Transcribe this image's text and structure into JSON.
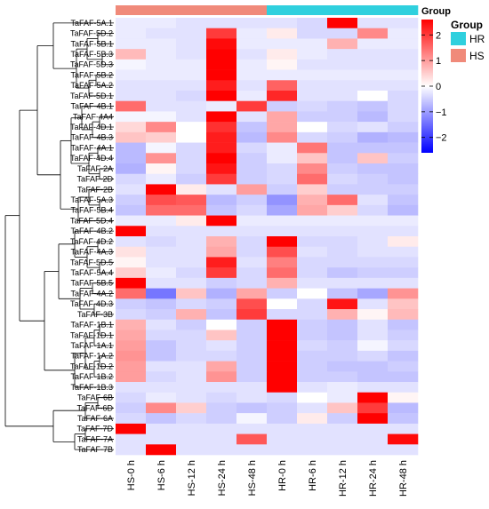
{
  "chart_data": {
    "type": "heatmap",
    "title": "",
    "xlabel": "",
    "ylabel": "",
    "columns": [
      "HS-0 h",
      "HS-6 h",
      "HS-12 h",
      "HS-24 h",
      "HS-48 h",
      "HR-0 h",
      "HR-6 h",
      "HR-12 h",
      "HR-24 h",
      "HR-48 h"
    ],
    "column_groups": [
      "HS",
      "HS",
      "HS",
      "HS",
      "HS",
      "HR",
      "HR",
      "HR",
      "HR",
      "HR"
    ],
    "rows": [
      "TaFAF-5A.1",
      "TaFAF-5D.2",
      "TaFAF-5B.1",
      "TaFAF-5B.3",
      "TaFAF-5D.3",
      "TaFAF-5B.2",
      "TaFAF-5A.2",
      "TaFAF-5D.1",
      "TaFAF-4B.1",
      "TaFAF-4A4",
      "TaFAF-4D.1",
      "TaFAF-4B.3",
      "TaFAF-4A.1",
      "TaFAF-4D.4",
      "TaFAF-2A",
      "TaFAF-2D",
      "TaFAF-2B",
      "TaFAF-5A.3",
      "TaFAF-5B.4",
      "TaFAF-5D.4",
      "TaFAF-4B.2",
      "TaFAF-4D.2",
      "TaFAF-4A.3",
      "TaFAF-5D.5",
      "TaFAF-5A.4",
      "TaFAF-5B.5",
      "TaFAF-4A.2",
      "TaFAF-4D.3",
      "TaFAF-3B",
      "TaFAF-1B.1",
      "TaFAF-1D.1",
      "TaFAF-1A.1",
      "TaFAF-1A.2",
      "TaFAF-1D.2",
      "TaFAF-1B.2",
      "TaFAF-1B.3",
      "TaFAF-6B",
      "TaFAF-6D",
      "TaFAF-6A",
      "TaFAF-7D",
      "TaFAF-7A",
      "TaFAF-7B"
    ],
    "values": [
      [
        -0.2,
        -0.2,
        -0.3,
        -0.3,
        -0.3,
        -0.3,
        -0.4,
        2.9,
        -0.3,
        -0.3
      ],
      [
        -0.2,
        -0.3,
        -0.3,
        2.0,
        -0.2,
        0.2,
        -0.4,
        -0.4,
        1.2,
        -0.2
      ],
      [
        -0.2,
        -0.2,
        -0.3,
        2.5,
        -0.2,
        -0.2,
        -0.2,
        0.8,
        -0.2,
        -0.2
      ],
      [
        0.7,
        -0.2,
        -0.3,
        2.6,
        -0.3,
        0.2,
        -0.2,
        -0.3,
        -0.3,
        -0.3
      ],
      [
        -0.1,
        -0.2,
        -0.2,
        2.8,
        -0.2,
        0.1,
        -0.3,
        -0.3,
        -0.3,
        -0.3
      ],
      [
        -0.2,
        -0.2,
        -0.2,
        2.6,
        -0.2,
        -0.2,
        -0.2,
        -0.2,
        -0.2,
        -0.2
      ],
      [
        -0.3,
        -0.3,
        -0.3,
        2.3,
        -0.3,
        1.6,
        -0.3,
        -0.3,
        -0.3,
        -0.3
      ],
      [
        -0.3,
        -0.3,
        -0.4,
        2.9,
        -0.2,
        2.2,
        -0.3,
        -0.3,
        0.0,
        -0.4
      ],
      [
        1.5,
        -0.3,
        -0.3,
        -0.2,
        2.0,
        -0.5,
        -0.4,
        -0.5,
        -0.6,
        -0.4
      ],
      [
        -0.1,
        -0.1,
        -0.3,
        2.7,
        -0.3,
        0.9,
        -0.5,
        -0.5,
        -0.7,
        -0.4
      ],
      [
        0.4,
        1.2,
        0.0,
        2.1,
        -0.6,
        0.9,
        0.0,
        -0.4,
        -0.3,
        -0.5
      ],
      [
        0.6,
        0.5,
        0.0,
        2.3,
        -0.7,
        1.2,
        -0.4,
        -0.5,
        -0.8,
        -0.7
      ],
      [
        -0.7,
        -0.1,
        -0.4,
        2.3,
        -0.4,
        -0.2,
        1.4,
        -0.6,
        -0.6,
        -0.6
      ],
      [
        -0.7,
        1.1,
        -0.4,
        2.6,
        -0.5,
        -0.2,
        0.6,
        -0.6,
        0.6,
        -0.5
      ],
      [
        -0.8,
        0.1,
        -0.4,
        2.4,
        -0.5,
        -0.4,
        1.2,
        -0.5,
        -0.6,
        -0.6
      ],
      [
        -0.4,
        -0.2,
        -0.5,
        2.0,
        -0.5,
        -0.4,
        1.5,
        -0.4,
        -0.5,
        -0.6
      ],
      [
        -0.3,
        2.7,
        0.2,
        -0.3,
        1.0,
        -0.5,
        0.5,
        -0.5,
        -0.5,
        -0.5
      ],
      [
        -0.5,
        1.8,
        1.7,
        -0.7,
        -0.5,
        -1.1,
        0.8,
        1.5,
        -0.3,
        -0.6
      ],
      [
        -0.6,
        1.5,
        1.5,
        -0.6,
        -0.4,
        -0.9,
        0.9,
        0.5,
        -0.4,
        -0.7
      ],
      [
        -0.2,
        -0.2,
        0.2,
        2.9,
        -0.2,
        -0.2,
        -0.2,
        -0.2,
        -0.2,
        -0.2
      ],
      [
        2.9,
        -0.3,
        -0.3,
        -0.3,
        -0.3,
        -0.3,
        -0.3,
        -0.3,
        -0.3,
        -0.3
      ],
      [
        -0.3,
        -0.4,
        -0.3,
        0.8,
        -0.4,
        2.9,
        -0.4,
        -0.4,
        -0.3,
        0.2
      ],
      [
        0.3,
        -0.3,
        -0.3,
        0.9,
        -0.4,
        1.8,
        -0.3,
        -0.4,
        -0.3,
        -0.3
      ],
      [
        0.1,
        -0.3,
        -0.3,
        2.3,
        -0.3,
        1.3,
        -0.4,
        -0.4,
        -0.4,
        -0.4
      ],
      [
        0.5,
        -0.2,
        -0.4,
        2.0,
        -0.4,
        1.5,
        -0.4,
        -0.6,
        -0.5,
        -0.5
      ],
      [
        2.6,
        -0.3,
        -0.3,
        -0.5,
        -0.4,
        0.8,
        -0.3,
        -0.3,
        -0.3,
        -0.3
      ],
      [
        1.5,
        -1.4,
        0.6,
        -0.8,
        0.9,
        -0.5,
        0.0,
        -0.6,
        -0.9,
        1.1
      ],
      [
        -0.5,
        -0.6,
        -0.4,
        -0.5,
        1.8,
        0.0,
        -0.4,
        2.4,
        -0.3,
        0.6
      ],
      [
        -0.4,
        -0.5,
        0.8,
        -0.6,
        2.0,
        -0.4,
        -0.4,
        0.8,
        0.1,
        0.7
      ],
      [
        0.8,
        -0.3,
        -0.5,
        0.0,
        -0.5,
        2.8,
        -0.5,
        -0.6,
        -0.3,
        -0.6
      ],
      [
        0.9,
        -0.4,
        -0.4,
        0.6,
        -0.5,
        2.8,
        -0.5,
        -0.6,
        -0.3,
        -0.5
      ],
      [
        1.0,
        -0.6,
        -0.4,
        -0.3,
        -0.5,
        2.7,
        -0.4,
        -0.5,
        -0.1,
        -0.4
      ],
      [
        1.1,
        -0.6,
        -0.4,
        -0.4,
        -0.5,
        2.7,
        -0.5,
        -0.5,
        -0.4,
        -0.6
      ],
      [
        1.0,
        -0.3,
        -0.3,
        0.9,
        -0.5,
        2.8,
        -0.5,
        -0.6,
        -0.6,
        -0.5
      ],
      [
        1.0,
        -0.4,
        -0.3,
        1.1,
        -0.5,
        2.8,
        -0.5,
        -0.5,
        -0.6,
        -0.6
      ],
      [
        -0.3,
        -0.3,
        -0.3,
        -0.3,
        -0.3,
        2.7,
        -0.3,
        -0.2,
        -0.3,
        -0.3
      ],
      [
        -0.4,
        -0.2,
        -0.3,
        -0.4,
        -0.3,
        -0.4,
        0.0,
        -0.2,
        2.9,
        0.1
      ],
      [
        -0.5,
        1.2,
        0.5,
        -0.5,
        -0.6,
        -0.5,
        -0.3,
        0.6,
        2.0,
        -0.7
      ],
      [
        -0.4,
        -0.6,
        -0.4,
        -0.5,
        -0.1,
        -0.5,
        0.2,
        -0.5,
        2.9,
        -0.6
      ],
      [
        2.9,
        -0.3,
        -0.3,
        -0.3,
        -0.3,
        -0.3,
        -0.3,
        -0.3,
        -0.3,
        -0.3
      ],
      [
        -0.3,
        -0.3,
        -0.3,
        -0.3,
        1.7,
        -0.3,
        -0.3,
        -0.3,
        -0.3,
        2.5
      ],
      [
        -0.3,
        2.9,
        -0.3,
        -0.3,
        -0.3,
        -0.3,
        -0.3,
        -0.3,
        -0.3,
        -0.3
      ]
    ],
    "color_scale": {
      "ticks": [
        2,
        1,
        0,
        -1,
        -2
      ],
      "range": [
        -2.6,
        2.6
      ],
      "colors": {
        "low": "#0000ff",
        "mid": "#ffffff",
        "high": "#ff0000"
      }
    },
    "group_legend": {
      "title": "Group",
      "entries": [
        {
          "label": "HR",
          "color": "#2fd0de"
        },
        {
          "label": "HS",
          "color": "#f08a7a"
        }
      ]
    },
    "annotation_bar_label": "Group",
    "dendrogram": "row clustering tree on left"
  }
}
